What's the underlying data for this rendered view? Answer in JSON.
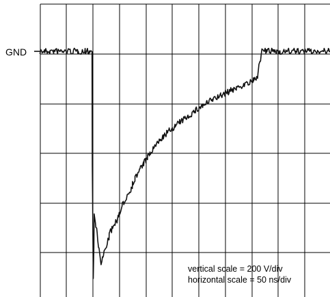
{
  "chart_data": {
    "type": "line",
    "reference_label": "GND",
    "annotations": [
      "vertical scale = 200 V/div",
      "horizontal scale = 50 ns/div"
    ],
    "xlabel": "",
    "ylabel": "",
    "x_units": "divisions (50 ns/div)",
    "y_units": "divisions below GND (200 V/div)",
    "xlim": [
      0,
      11
    ],
    "ylim": [
      -4.7,
      0.7
    ],
    "grid": true,
    "series": [
      {
        "points": [
          [
            0.0,
            0.0
          ],
          [
            0.5,
            0.0
          ],
          [
            1.0,
            0.0
          ],
          [
            1.5,
            0.0
          ],
          [
            1.95,
            0.0
          ],
          [
            2.0,
            -4.6
          ],
          [
            2.05,
            -3.3
          ],
          [
            2.15,
            -3.7
          ],
          [
            2.3,
            -4.3
          ],
          [
            2.5,
            -3.9
          ],
          [
            2.7,
            -3.6
          ],
          [
            2.9,
            -3.4
          ],
          [
            3.0,
            -3.3
          ],
          [
            3.2,
            -3.0
          ],
          [
            3.4,
            -2.8
          ],
          [
            3.6,
            -2.55
          ],
          [
            3.8,
            -2.35
          ],
          [
            4.0,
            -2.2
          ],
          [
            4.3,
            -1.95
          ],
          [
            4.6,
            -1.75
          ],
          [
            5.0,
            -1.55
          ],
          [
            5.5,
            -1.35
          ],
          [
            6.0,
            -1.15
          ],
          [
            6.5,
            -0.98
          ],
          [
            7.0,
            -0.85
          ],
          [
            7.5,
            -0.72
          ],
          [
            8.0,
            -0.62
          ],
          [
            8.2,
            -0.55
          ],
          [
            8.3,
            -0.28
          ],
          [
            8.4,
            0.0
          ],
          [
            9.0,
            0.0
          ],
          [
            9.5,
            0.0
          ],
          [
            10.0,
            0.0
          ],
          [
            10.5,
            0.0
          ],
          [
            11.0,
            0.0
          ]
        ]
      }
    ]
  }
}
